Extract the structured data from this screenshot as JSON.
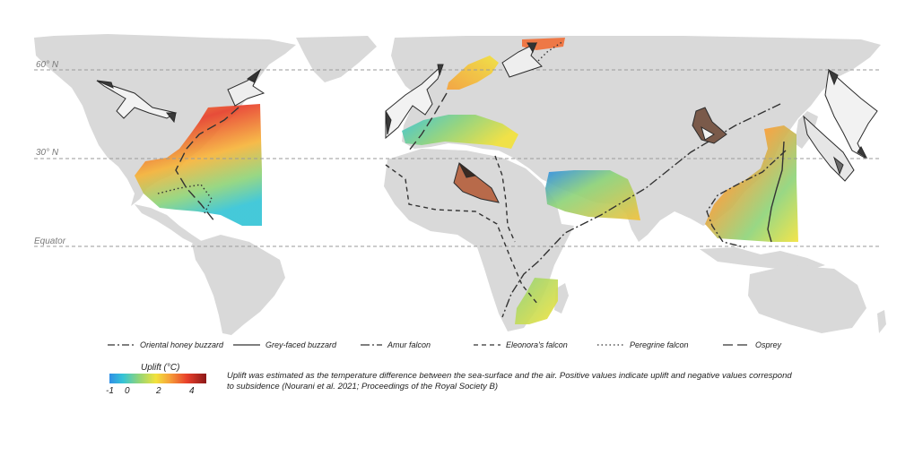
{
  "map": {
    "latitude_labels": [
      {
        "id": "lat-60",
        "text": "60° N"
      },
      {
        "id": "lat-30",
        "text": "30° N"
      },
      {
        "id": "lat-eq",
        "text": "Equator"
      }
    ],
    "land_color": "#d9d9d9",
    "ocean_color": "#ffffff"
  },
  "route_legend": [
    {
      "label": "Oriental honey buzzard",
      "dash": "8 3 2 3"
    },
    {
      "label": "Grey-faced buzzard",
      "dash": ""
    },
    {
      "label": "Amur falcon",
      "dash": "10 3 2 3"
    },
    {
      "label": "Eleonora's falcon",
      "dash": "5 4"
    },
    {
      "label": "Peregrine falcon",
      "dash": "1.5 3"
    },
    {
      "label": "Osprey",
      "dash": "11 5"
    }
  ],
  "uplift_legend": {
    "title": "Uplift (°C)",
    "ticks": [
      "-1",
      "0",
      "2",
      "4"
    ],
    "colors": [
      "#2f8fe6",
      "#35c4d6",
      "#8fd47a",
      "#f2e23c",
      "#f6a23a",
      "#e8402b",
      "#8c1818"
    ]
  },
  "note": "Uplift was estimated as the temperature difference between the sea-surface and the air. Positive values indicate uplift and negative values correspond to subsidence (Nourani et al. 2021; Proceedings of the Royal Society B)"
}
